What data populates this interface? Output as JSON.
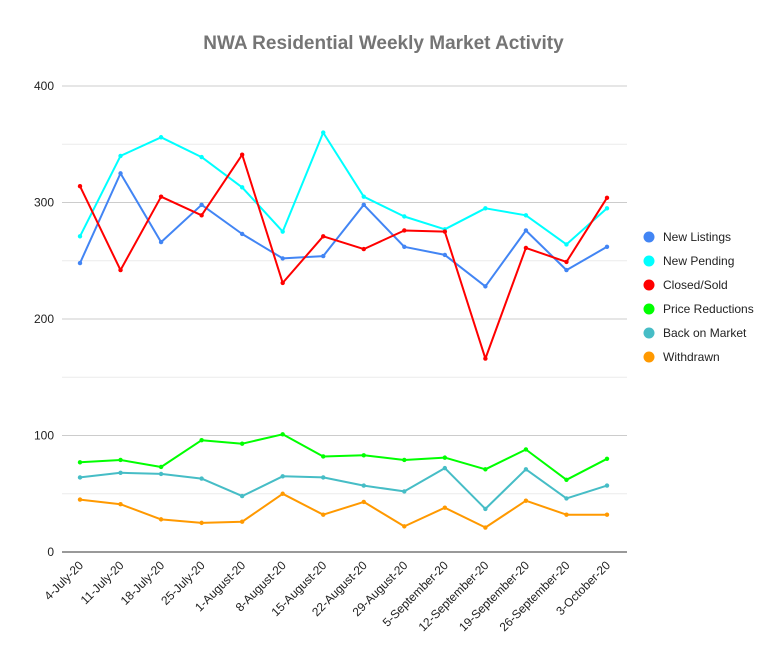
{
  "chart_data": {
    "type": "line",
    "title": "NWA Residential Weekly Market Activity",
    "xlabel": "",
    "ylabel": "",
    "ylim": [
      0,
      400
    ],
    "yticks": [
      0,
      100,
      200,
      300,
      400
    ],
    "grid": true,
    "legend_position": "right",
    "categories": [
      "4-July-20",
      "11-July-20",
      "18-July-20",
      "25-July-20",
      "1-August-20",
      "8-August-20",
      "15-August-20",
      "22-August-20",
      "29-August-20",
      "5-September-20",
      "12-September-20",
      "19-September-20",
      "26-September-20",
      "3-October-20"
    ],
    "series": [
      {
        "name": "New Listings",
        "color": "#4285f4",
        "values": [
          248,
          325,
          266,
          298,
          273,
          252,
          254,
          298,
          262,
          255,
          228,
          276,
          242,
          262
        ]
      },
      {
        "name": "New Pending",
        "color": "#00ffff",
        "values": [
          271,
          340,
          356,
          339,
          313,
          275,
          360,
          305,
          288,
          277,
          295,
          289,
          264,
          295
        ]
      },
      {
        "name": "Closed/Sold",
        "color": "#ff0000",
        "values": [
          314,
          242,
          305,
          289,
          341,
          231,
          271,
          260,
          276,
          275,
          166,
          261,
          249,
          304
        ]
      },
      {
        "name": "Price Reductions",
        "color": "#00ff00",
        "values": [
          77,
          79,
          73,
          96,
          93,
          101,
          82,
          83,
          79,
          81,
          71,
          88,
          62,
          80
        ]
      },
      {
        "name": "Back on Market",
        "color": "#46bdc6",
        "values": [
          64,
          68,
          67,
          63,
          48,
          65,
          64,
          57,
          52,
          72,
          37,
          71,
          46,
          57
        ]
      },
      {
        "name": "Withdrawn",
        "color": "#ff9900",
        "values": [
          45,
          41,
          28,
          25,
          26,
          50,
          32,
          43,
          22,
          38,
          21,
          44,
          32,
          32
        ]
      }
    ]
  }
}
